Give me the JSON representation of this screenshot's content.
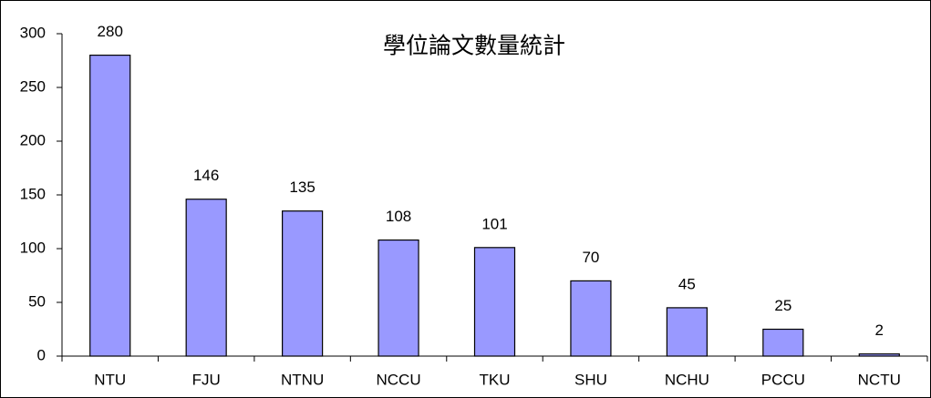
{
  "chart_data": {
    "type": "bar",
    "title": "學位論文數量統計",
    "categories": [
      "NTU",
      "FJU",
      "NTNU",
      "NCCU",
      "TKU",
      "SHU",
      "NCHU",
      "PCCU",
      "NCTU"
    ],
    "values": [
      280,
      146,
      135,
      108,
      101,
      70,
      45,
      25,
      2
    ],
    "color": "#9999ff",
    "ylim": [
      0,
      300
    ],
    "yticks": [
      0,
      50,
      100,
      150,
      200,
      250,
      300
    ],
    "grid": false
  }
}
